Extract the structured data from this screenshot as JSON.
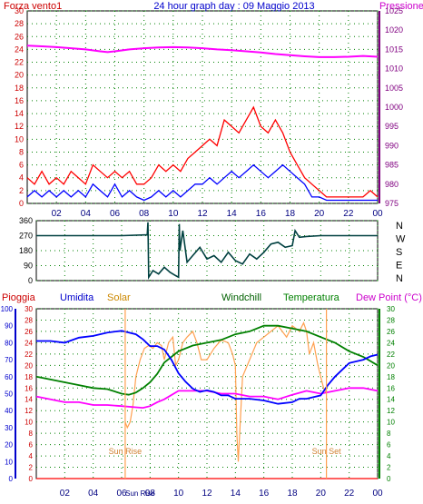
{
  "header": {
    "left": "Forza vento1",
    "center": "24 hour graph day : 09 Maggio 2013",
    "right": "Pressione"
  },
  "colors": {
    "wind_gust": "#ff0000",
    "wind_avg": "#0000ff",
    "pressure": "#ff00ff",
    "direction": "#004040",
    "rain": "#ff0000",
    "humidity": "#0000ff",
    "solar": "#ffa050",
    "temperature": "#008000",
    "dewpoint": "#ff00ff",
    "left_axis": "#cc0000",
    "right_axis_top": "#800080",
    "right_axis_bottom": "#008000",
    "frame": "#000000",
    "grid": "#008000"
  },
  "chart_data": [
    {
      "type": "line",
      "title": "24 hour graph day : 09 Maggio 2013",
      "ylabel_left": "Forza vento1",
      "ylabel_right": "Pressione",
      "xlim": [
        0,
        24
      ],
      "x_ticks": [
        "02",
        "04",
        "06",
        "08",
        "10",
        "12",
        "14",
        "16",
        "18",
        "20",
        "22",
        "00"
      ],
      "x_tick_hours": [
        2,
        4,
        6,
        8,
        10,
        12,
        14,
        16,
        18,
        20,
        22,
        24
      ],
      "y_left_ticks": [
        "0",
        "2",
        "4",
        "6",
        "8",
        "10",
        "12",
        "14",
        "16",
        "18",
        "20",
        "22",
        "24",
        "26",
        "28",
        "30"
      ],
      "ylim_left": [
        0,
        30
      ],
      "y_right_ticks": [
        "975",
        "980",
        "985",
        "990",
        "995",
        "1000",
        "1005",
        "1010",
        "1015",
        "1020",
        "1025"
      ],
      "ylim_right": [
        975,
        1025
      ],
      "series": [
        {
          "key": "pressure",
          "axis": "right",
          "x": [
            0,
            1,
            2,
            3,
            4,
            5,
            5.5,
            6,
            7,
            8,
            9,
            10,
            11,
            12,
            13,
            14,
            15,
            16,
            17,
            18,
            19,
            20,
            21,
            22,
            23,
            24
          ],
          "y": [
            1016,
            1015.8,
            1015.6,
            1015.3,
            1015,
            1014.5,
            1014.3,
            1014.5,
            1015,
            1015.3,
            1015.5,
            1015.6,
            1015.5,
            1015.3,
            1015,
            1014.8,
            1014.5,
            1014.2,
            1013.8,
            1013.5,
            1013.2,
            1013,
            1013,
            1013.1,
            1013.3,
            1013.1
          ]
        },
        {
          "key": "wind_avg",
          "axis": "left",
          "x": [
            0,
            0.5,
            1,
            1.5,
            2,
            2.5,
            3,
            3.5,
            4,
            4.5,
            5,
            5.5,
            6,
            6.5,
            7,
            7.5,
            8,
            8.5,
            9,
            9.5,
            10,
            10.5,
            11,
            11.5,
            12,
            12.5,
            13,
            13.5,
            14,
            14.5,
            15,
            15.5,
            16,
            16.5,
            17,
            17.5,
            18,
            18.5,
            19,
            19.5,
            20,
            20.5,
            21,
            21.5,
            22,
            22.5,
            23,
            23.5,
            24
          ],
          "y": [
            1,
            2,
            1,
            2,
            1,
            2,
            1,
            2,
            1,
            3,
            2,
            1,
            3,
            1,
            2,
            1,
            0.5,
            1,
            2,
            1,
            2,
            1,
            2,
            3,
            3,
            4,
            3,
            4,
            5,
            4,
            5,
            6,
            5,
            4,
            5,
            6,
            5,
            4,
            3,
            1,
            1,
            0.5,
            0.5,
            0.5,
            0.5,
            0.5,
            0.5,
            0.5,
            0.5
          ]
        },
        {
          "key": "wind_gust",
          "axis": "left",
          "x": [
            0,
            0.5,
            1,
            1.5,
            2,
            2.5,
            3,
            3.5,
            4,
            4.5,
            5,
            5.5,
            6,
            6.5,
            7,
            7.5,
            8,
            8.5,
            9,
            9.5,
            10,
            10.5,
            11,
            11.5,
            12,
            12.5,
            13,
            13.5,
            14,
            14.5,
            15,
            15.5,
            16,
            16.5,
            17,
            17.5,
            18,
            18.5,
            19,
            19.5,
            20,
            20.5,
            21,
            21.5,
            22,
            22.5,
            23,
            23.5,
            24
          ],
          "y": [
            4,
            3,
            5,
            3,
            4,
            3,
            5,
            4,
            3,
            6,
            5,
            4,
            5,
            4,
            5,
            3,
            3,
            4,
            6,
            5,
            6,
            5,
            7,
            8,
            9,
            10,
            9,
            13,
            12,
            11,
            13,
            15,
            12,
            11,
            13,
            11,
            8,
            6,
            4,
            3,
            2,
            1,
            1,
            1,
            1,
            1,
            1,
            2,
            1
          ]
        }
      ]
    },
    {
      "type": "line",
      "title": "",
      "xlim": [
        0,
        24
      ],
      "y_ticks": [
        "360",
        "270",
        "180",
        "90",
        "0"
      ],
      "ylim": [
        0,
        360
      ],
      "y_right_labels": [
        "N",
        "W",
        "S",
        "E",
        "N"
      ],
      "series": [
        {
          "key": "direction",
          "x": [
            0,
            2,
            4,
            6,
            7.8,
            7.85,
            7.9,
            8.2,
            8.6,
            9,
            9.4,
            9.8,
            10,
            10.05,
            10.1,
            10.3,
            10.6,
            11,
            11.5,
            12,
            12.5,
            13,
            13.5,
            14,
            14.5,
            15,
            15.5,
            16,
            16.5,
            17,
            17.5,
            18,
            18.2,
            18.5,
            19,
            20,
            22,
            24
          ],
          "y": [
            270,
            270,
            270,
            270,
            275,
            350,
            20,
            60,
            40,
            80,
            50,
            30,
            20,
            340,
            180,
            300,
            110,
            150,
            200,
            130,
            150,
            110,
            170,
            120,
            100,
            160,
            130,
            170,
            220,
            230,
            200,
            210,
            300,
            260,
            265,
            270,
            270,
            270
          ]
        }
      ]
    },
    {
      "type": "line",
      "title": "",
      "xlim": [
        0,
        24
      ],
      "x_ticks": [
        "02",
        "04",
        "06",
        "Sun Rise",
        "08",
        "10",
        "12",
        "14",
        "16",
        "18",
        "20",
        "22",
        "00"
      ],
      "x_tick_hours": [
        2,
        4,
        6,
        7.3,
        8,
        10,
        12,
        14,
        16,
        18,
        20,
        22,
        24
      ],
      "legend": [
        "Pioggia",
        "Umidita",
        "Solar",
        "Windchill",
        "Temperatura",
        "Dew Point (°C)"
      ],
      "y_left_ticks_outer": [
        "0",
        "10",
        "20",
        "30",
        "40",
        "50",
        "60",
        "70",
        "80",
        "90",
        "100"
      ],
      "ylim_outer": [
        0,
        100
      ],
      "y_left_ticks_inner": [
        "0",
        "2",
        "4",
        "6",
        "8",
        "10",
        "12",
        "14",
        "16",
        "18",
        "20",
        "22",
        "24",
        "26",
        "28",
        "30"
      ],
      "y_right_ticks": [
        "0",
        "2",
        "4",
        "6",
        "8",
        "10",
        "12",
        "14",
        "16",
        "18",
        "20",
        "22",
        "24",
        "26",
        "28",
        "30"
      ],
      "ylim_temp": [
        0,
        30
      ],
      "annotations": [
        {
          "text": "Sun Rise",
          "x": 6.25
        },
        {
          "text": "Sun Set",
          "x": 20.4
        }
      ],
      "series": [
        {
          "key": "rain",
          "axis": "temp",
          "x": [
            0,
            24
          ],
          "y": [
            0,
            0
          ]
        },
        {
          "key": "humidity",
          "axis": "outer",
          "x": [
            0,
            1,
            2,
            3,
            4,
            5,
            6,
            7,
            7.5,
            8,
            8.5,
            9,
            9.5,
            10,
            10.5,
            11,
            11.5,
            12,
            12.5,
            13,
            13.5,
            14,
            15,
            16,
            17,
            18,
            18.5,
            19,
            19.5,
            20,
            20.5,
            21,
            22,
            23,
            23.5,
            24
          ],
          "y": [
            81,
            81,
            80,
            83,
            84,
            86,
            87,
            85,
            82,
            78,
            78,
            76,
            70,
            62,
            57,
            53,
            51,
            52,
            51,
            49,
            49,
            47,
            47,
            46,
            44,
            45,
            47,
            47,
            48,
            49,
            55,
            60,
            68,
            70,
            72,
            73
          ]
        },
        {
          "key": "temperature",
          "axis": "temp",
          "x": [
            0,
            1,
            2,
            3,
            4,
            5,
            6,
            6.5,
            7,
            7.5,
            8,
            8.5,
            9,
            10,
            11,
            12,
            13,
            14,
            15,
            16,
            17,
            18,
            19,
            20,
            21,
            22,
            23,
            24
          ],
          "y": [
            18,
            17.5,
            17,
            16.5,
            16,
            15.8,
            15,
            14.8,
            15.2,
            16,
            17,
            18.5,
            20.5,
            22.5,
            23.5,
            24,
            24.5,
            25.5,
            26,
            27,
            27,
            26.5,
            26,
            25,
            24,
            22.5,
            21.5,
            20
          ]
        },
        {
          "key": "dewpoint",
          "axis": "temp",
          "x": [
            0,
            1,
            2,
            3,
            4,
            5,
            6,
            7,
            7.5,
            8,
            8.5,
            9,
            10,
            11,
            12,
            13,
            14,
            15,
            16,
            17,
            18,
            19,
            20,
            21,
            22,
            23,
            24
          ],
          "y": [
            14.5,
            14,
            13.5,
            13.5,
            13,
            13,
            12.8,
            12.6,
            12.5,
            12.8,
            13.5,
            14,
            15.5,
            15.5,
            15.5,
            15,
            15,
            14.5,
            14.5,
            14,
            14.8,
            15.5,
            15,
            15.5,
            16,
            16,
            15.5
          ]
        },
        {
          "key": "solar",
          "axis": "temp",
          "x": [
            6.25,
            6.4,
            6.6,
            6.8,
            7,
            7.3,
            7.6,
            7.9,
            8.2,
            8.5,
            8.8,
            9,
            9.3,
            9.6,
            9.8,
            10,
            10.3,
            10.6,
            11,
            11.3,
            11.6,
            12,
            12.5,
            13,
            13.5,
            13.8,
            14,
            14.1,
            14.2,
            14.5,
            15,
            15.5,
            16,
            16.5,
            17,
            17.3,
            17.6,
            18,
            18.5,
            18.8,
            19,
            19.2,
            19.5,
            19.8,
            20,
            20.2,
            20.4
          ],
          "y": [
            10,
            9,
            10,
            13,
            18,
            21,
            23,
            23.5,
            23,
            24,
            23.5,
            21,
            24,
            25,
            20,
            21,
            24,
            25,
            26,
            24,
            21,
            21,
            23,
            24.5,
            24,
            22,
            20,
            8,
            3,
            18,
            21,
            24,
            25,
            26,
            27,
            26,
            25,
            27,
            26,
            27.5,
            26,
            22,
            24,
            20,
            18,
            16,
            15
          ]
        }
      ]
    }
  ]
}
